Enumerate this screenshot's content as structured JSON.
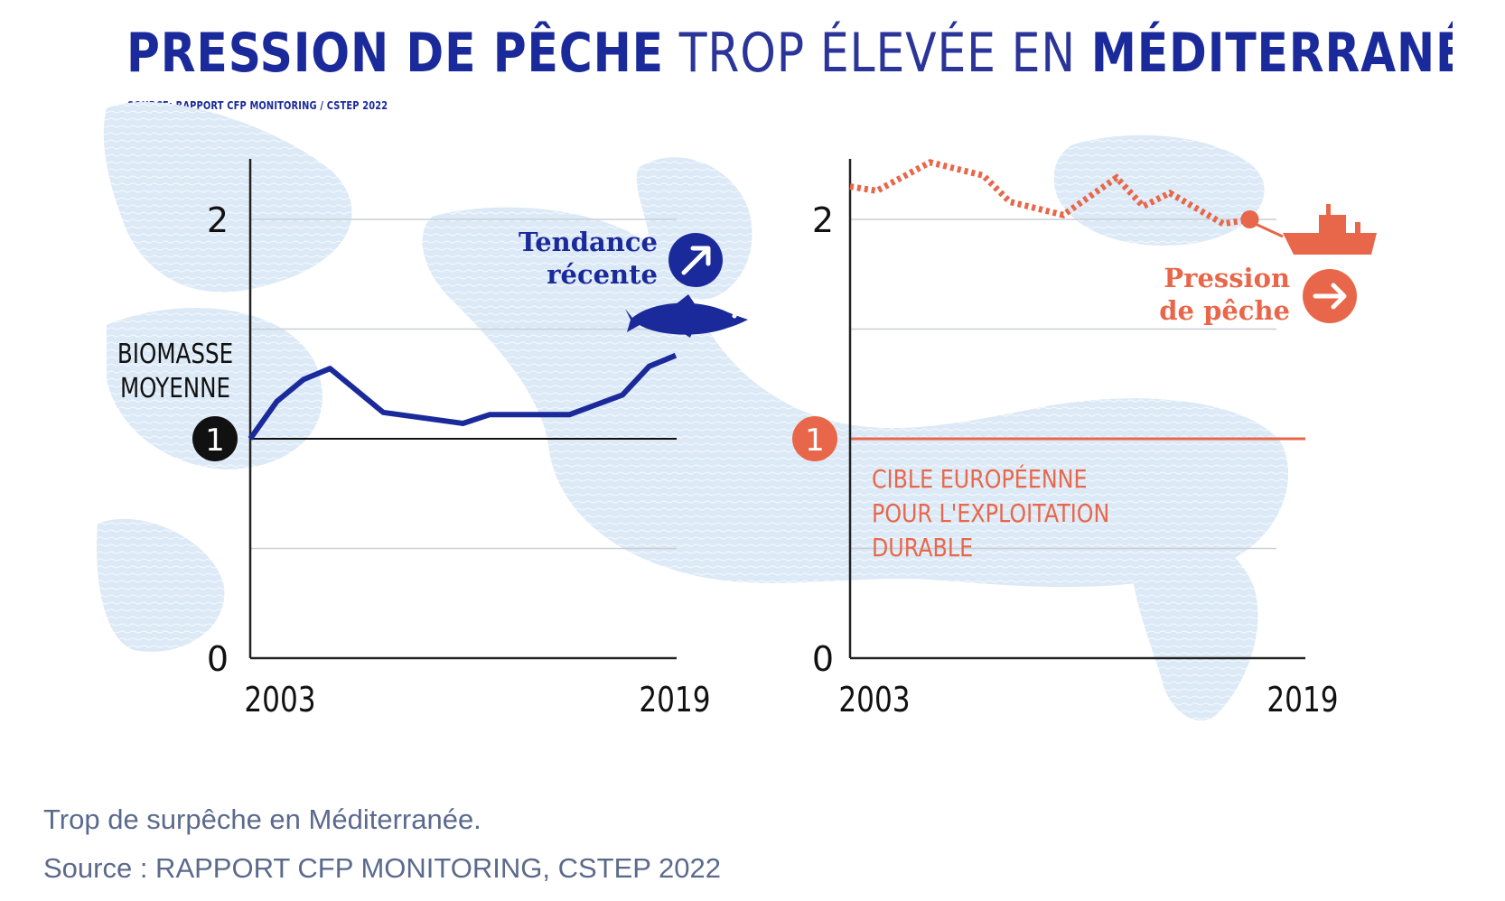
{
  "figure": {
    "title_bold_1": "PRESSION DE PÊCHE",
    "title_light": "TROP ÉLEVÉE EN",
    "title_bold_2": "MÉDITERRANÉE",
    "source": "SOURCE: RAPPORT CFP MONITORING / CSTEP 2022"
  },
  "caption": {
    "line1": "Trop de surpêche en Méditerranée.",
    "line2": "Source : RAPPORT CFP MONITORING, CSTEP 2022"
  },
  "colors": {
    "biomass": "#1b2a9b",
    "pressure": "#e8674a",
    "map": "#d9e7f5",
    "axis": "#222222",
    "grid": "#c9cfd6"
  },
  "icons": {
    "trend": "arrow-up-right-icon",
    "fish": "fish-icon",
    "pressure": "arrow-right-icon",
    "boat": "fishing-boat-icon"
  },
  "chart_data": [
    {
      "type": "line",
      "ylabel": "BIOMASSE MOYENNE",
      "ylim": [
        0,
        2
      ],
      "y_ticks": [
        "0",
        "1",
        "2"
      ],
      "reference_line": 1,
      "x_ticks": [
        "2003",
        "2019"
      ],
      "annotation": [
        "Tendance",
        "récente"
      ],
      "series": [
        {
          "name": "",
          "x": [
            2003,
            2004,
            2005,
            2006,
            2008,
            2011,
            2012,
            2015,
            2017,
            2018,
            2019
          ],
          "values": [
            1.0,
            1.17,
            1.27,
            1.32,
            1.12,
            1.07,
            1.11,
            1.11,
            1.2,
            1.33,
            1.38
          ]
        }
      ]
    },
    {
      "type": "line",
      "ylim": [
        0,
        2
      ],
      "y_ticks": [
        "0",
        "1",
        "2"
      ],
      "reference_line": 1,
      "reference_label": [
        "CIBLE EUROPÉENNE",
        "POUR L'EXPLOITATION",
        "DURABLE"
      ],
      "x_ticks": [
        "2003",
        "2019"
      ],
      "annotation": [
        "Pression",
        "de pêche"
      ],
      "series": [
        {
          "name": "",
          "style": "dotted",
          "x": [
            2003,
            2004,
            2006,
            2008,
            2009,
            2011,
            2013,
            2014,
            2015,
            2017,
            2018
          ],
          "values": [
            2.15,
            2.13,
            2.26,
            2.2,
            2.08,
            2.02,
            2.19,
            2.06,
            2.12,
            1.98,
            2.0
          ]
        }
      ]
    }
  ]
}
